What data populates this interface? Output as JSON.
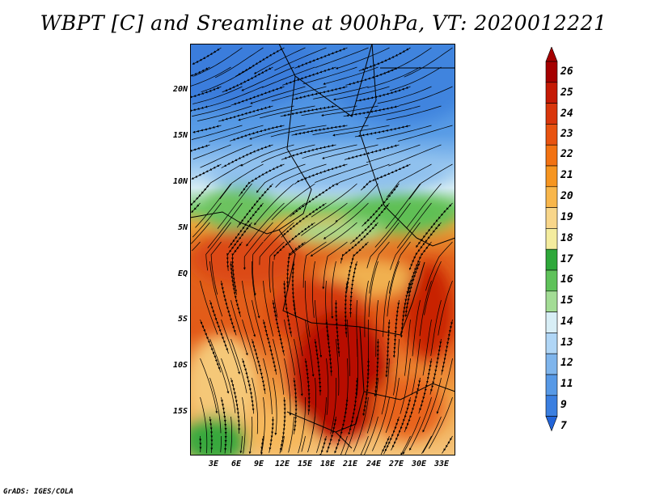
{
  "title": "WBPT [C] and Sreamline at 900hPa, VT: 2020012221",
  "footer": "GrADS: IGES/COLA",
  "lat_labels": [
    "20N",
    "15N",
    "10N",
    "5N",
    "EQ",
    "5S",
    "10S",
    "15S"
  ],
  "lon_labels": [
    "3E",
    "6E",
    "9E",
    "12E",
    "15E",
    "18E",
    "21E",
    "24E",
    "27E",
    "30E",
    "33E"
  ],
  "colorbar": {
    "labels": [
      "26",
      "25",
      "24",
      "23",
      "22",
      "21",
      "20",
      "19",
      "18",
      "17",
      "16",
      "15",
      "14",
      "13",
      "12",
      "11",
      "9",
      "7"
    ],
    "colors": [
      "#a50000",
      "#c51a05",
      "#d9360c",
      "#e85310",
      "#f27212",
      "#f69520",
      "#f8b64b",
      "#f8d68a",
      "#f4ec9e",
      "#2ea83a",
      "#5fc25a",
      "#a3dc95",
      "#d8eef6",
      "#b0d6f6",
      "#7fb5ec",
      "#5799e6",
      "#3b7fe0",
      "#2264d8"
    ]
  },
  "field_colors": {
    "blue_north": "#4d8fe0",
    "light_blue": "#a7cff2",
    "green_band": "#5fc25a",
    "orange": "#ef8a2a",
    "red": "#d9360c",
    "dark_red": "#b80e02"
  }
}
